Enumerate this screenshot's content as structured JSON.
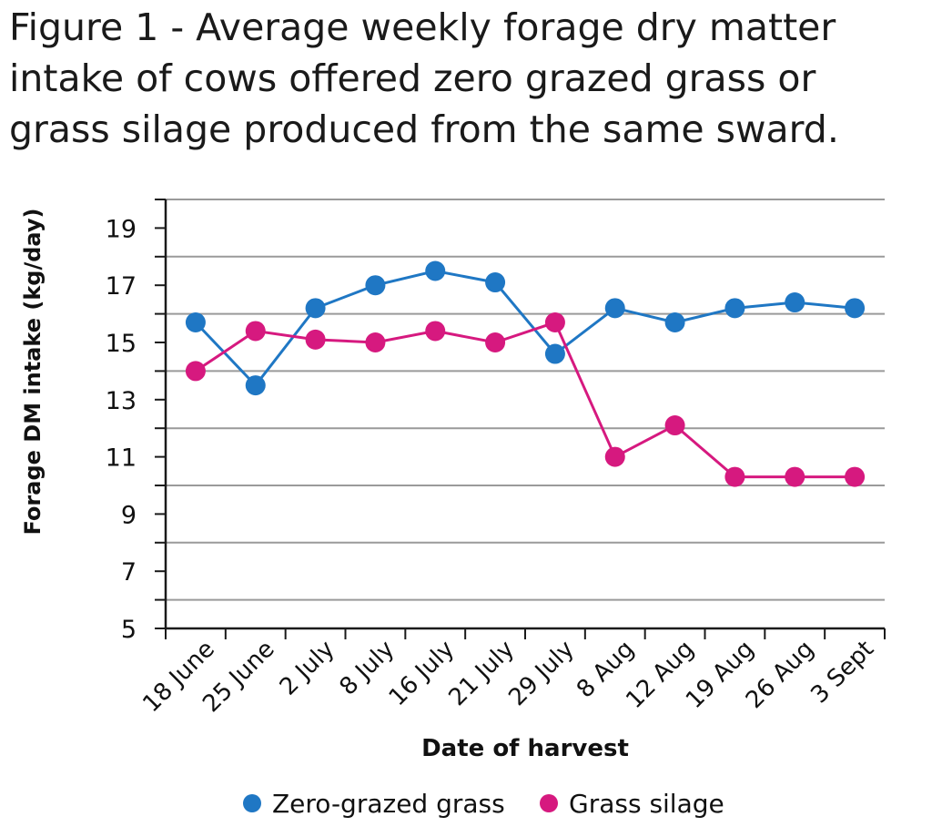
{
  "figure": {
    "title": "Figure 1 - Average weekly forage dry matter\nintake of cows offered zero grazed grass or\ngrass silage produced from the same sward."
  },
  "chart_data": {
    "type": "line",
    "title": "Figure 1 - Average weekly forage dry matter intake of cows offered zero grazed grass or grass silage produced from the same sward.",
    "xlabel": "Date of harvest",
    "ylabel": "Forage DM intake (kg/day)",
    "ylim": [
      5,
      20
    ],
    "yticks": [
      5,
      7,
      9,
      11,
      13,
      15,
      17,
      19
    ],
    "grid": true,
    "legend_position": "bottom",
    "categories": [
      "18 June",
      "25 June",
      "2 July",
      "8 July",
      "16 July",
      "21 July",
      "29 July",
      "8 Aug",
      "12 Aug",
      "19 Aug",
      "26 Aug",
      "3 Sept"
    ],
    "series": [
      {
        "name": "Zero-grazed grass",
        "color": "#1f77c4",
        "values": [
          15.7,
          13.5,
          16.2,
          17.0,
          17.5,
          17.1,
          14.6,
          16.2,
          15.7,
          16.2,
          16.4,
          16.2
        ]
      },
      {
        "name": "Grass silage",
        "color": "#d6197f",
        "values": [
          14.0,
          15.4,
          15.1,
          15.0,
          15.4,
          15.0,
          15.7,
          11.0,
          12.1,
          10.3,
          10.3,
          10.3
        ]
      }
    ]
  }
}
